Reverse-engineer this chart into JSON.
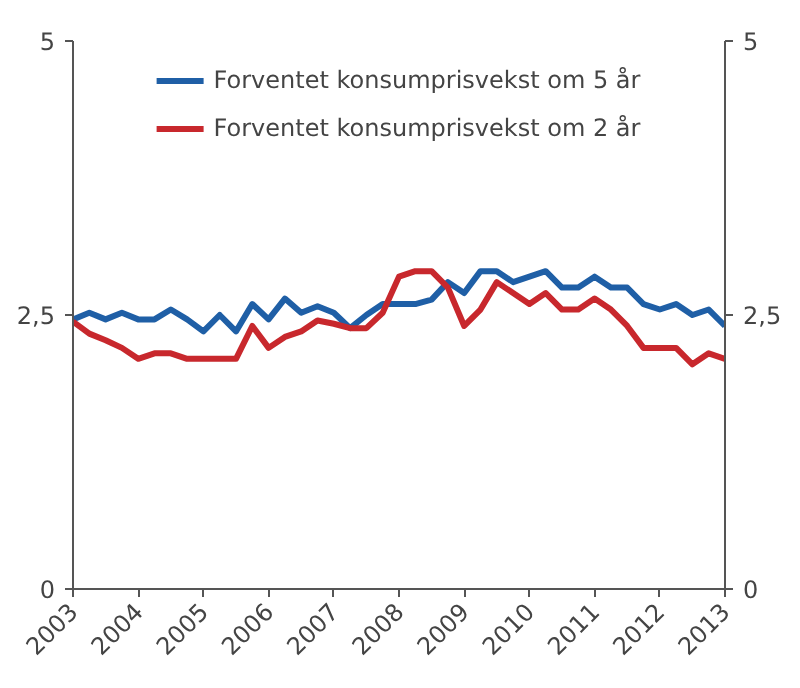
{
  "chart_data": {
    "type": "line",
    "x": [
      2003,
      2003.25,
      2003.5,
      2003.75,
      2004,
      2004.25,
      2004.5,
      2004.75,
      2005,
      2005.25,
      2005.5,
      2005.75,
      2006,
      2006.25,
      2006.5,
      2006.75,
      2007,
      2007.25,
      2007.5,
      2007.75,
      2008,
      2008.25,
      2008.5,
      2008.75,
      2009,
      2009.25,
      2009.5,
      2009.75,
      2010,
      2010.25,
      2010.5,
      2010.75,
      2011,
      2011.25,
      2011.5,
      2011.75,
      2012,
      2012.25,
      2012.5,
      2012.75,
      2013
    ],
    "series": [
      {
        "name": "Forventet konsumprisvekst om 5 år",
        "color": "#1f5fa6",
        "values": [
          2.46,
          2.52,
          2.46,
          2.52,
          2.46,
          2.46,
          2.55,
          2.46,
          2.35,
          2.5,
          2.35,
          2.6,
          2.46,
          2.65,
          2.52,
          2.58,
          2.52,
          2.38,
          2.5,
          2.6,
          2.6,
          2.6,
          2.64,
          2.8,
          2.7,
          2.9,
          2.9,
          2.8,
          2.85,
          2.9,
          2.75,
          2.75,
          2.85,
          2.75,
          2.75,
          2.6,
          2.55,
          2.6,
          2.5,
          2.55,
          2.4
        ]
      },
      {
        "name": "Forventet konsumprisvekst om 2 år",
        "color": "#c8282d",
        "values": [
          2.44,
          2.33,
          2.27,
          2.2,
          2.1,
          2.15,
          2.15,
          2.1,
          2.1,
          2.1,
          2.1,
          2.4,
          2.2,
          2.3,
          2.35,
          2.45,
          2.42,
          2.38,
          2.38,
          2.52,
          2.85,
          2.9,
          2.9,
          2.75,
          2.4,
          2.55,
          2.8,
          2.7,
          2.6,
          2.7,
          2.55,
          2.55,
          2.65,
          2.55,
          2.4,
          2.2,
          2.2,
          2.2,
          2.05,
          2.15,
          2.1
        ]
      }
    ],
    "xlim": [
      2003,
      2013
    ],
    "xticks": [
      2003,
      2004,
      2005,
      2006,
      2007,
      2008,
      2009,
      2010,
      2011,
      2012,
      2013
    ],
    "ylim": [
      0,
      5
    ],
    "yticks": [
      0,
      {
        "value": 2.5,
        "label": "2,5"
      },
      5
    ],
    "y2lim": [
      0,
      5
    ],
    "y2ticks": [
      0,
      {
        "value": 2.5,
        "label": "2,5"
      },
      5
    ],
    "legend": "top",
    "grid": false,
    "marker": "none",
    "line_style": "solid"
  }
}
